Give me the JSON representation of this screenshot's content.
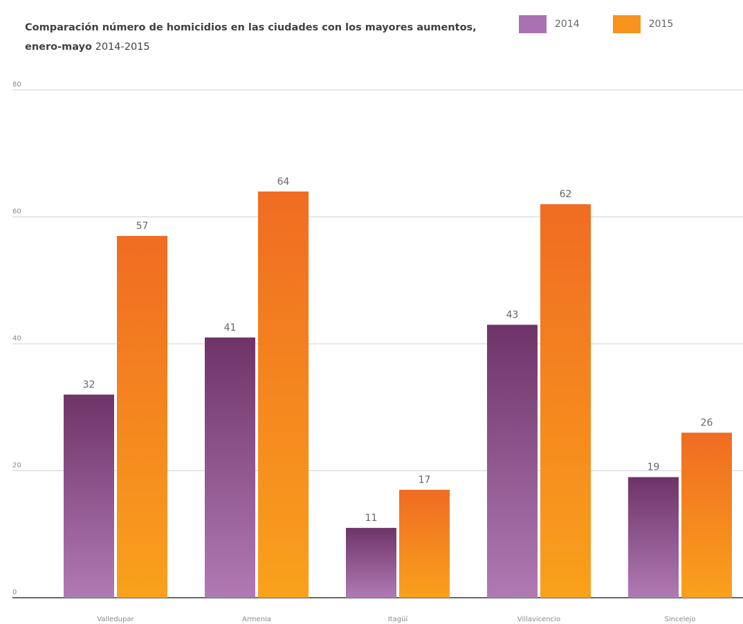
{
  "chart_data": {
    "type": "bar",
    "title_bold": "Comparación número de homicidios en las ciudades con los mayores aumentos, enero-mayo",
    "title_regular": "2014-2015",
    "categories": [
      "Valledupar",
      "Armenia",
      "Itagüí",
      "Villavicencio",
      "Sincelejo"
    ],
    "series": [
      {
        "name": "2014",
        "values": [
          32,
          41,
          11,
          43,
          19
        ]
      },
      {
        "name": "2015",
        "values": [
          57,
          64,
          17,
          62,
          26
        ]
      }
    ],
    "yticks": [
      0,
      20,
      40,
      60,
      80
    ],
    "ylim": [
      0,
      80
    ],
    "grid": true,
    "legend": "top-right",
    "colors": {
      "s2014_top": "#6e3468",
      "s2014_bottom": "#b07ab4",
      "s2015_top": "#f06c22",
      "s2015_bottom": "#f9a11c"
    }
  }
}
